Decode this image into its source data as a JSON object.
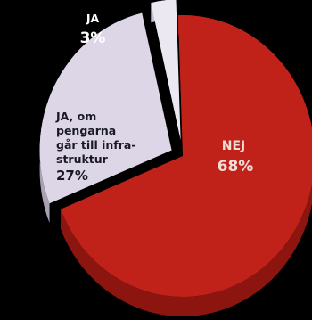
{
  "chart_data": {
    "type": "pie",
    "title": "",
    "slices": [
      {
        "label_lines": [
          "NEJ"
        ],
        "value_label": "68%",
        "value": 68,
        "color": "#c0221a",
        "label_color": "#f3dcd6"
      },
      {
        "label_lines": [
          "JA, om",
          "pengarna",
          "går till infra-",
          "struktur"
        ],
        "value_label": "27%",
        "value": 27,
        "color": "#dcd6e6",
        "label_color": "#1a1a24"
      },
      {
        "label_lines": [
          "JA"
        ],
        "value_label": "3%",
        "value": 3,
        "color": "#ece8f2",
        "label_color": "#ffffff"
      }
    ]
  },
  "colors": {
    "background": "#000000",
    "nej_side": "#8c1510",
    "ja_om_side": "#a8a2b4",
    "ja_side": "#c8c2d2"
  }
}
